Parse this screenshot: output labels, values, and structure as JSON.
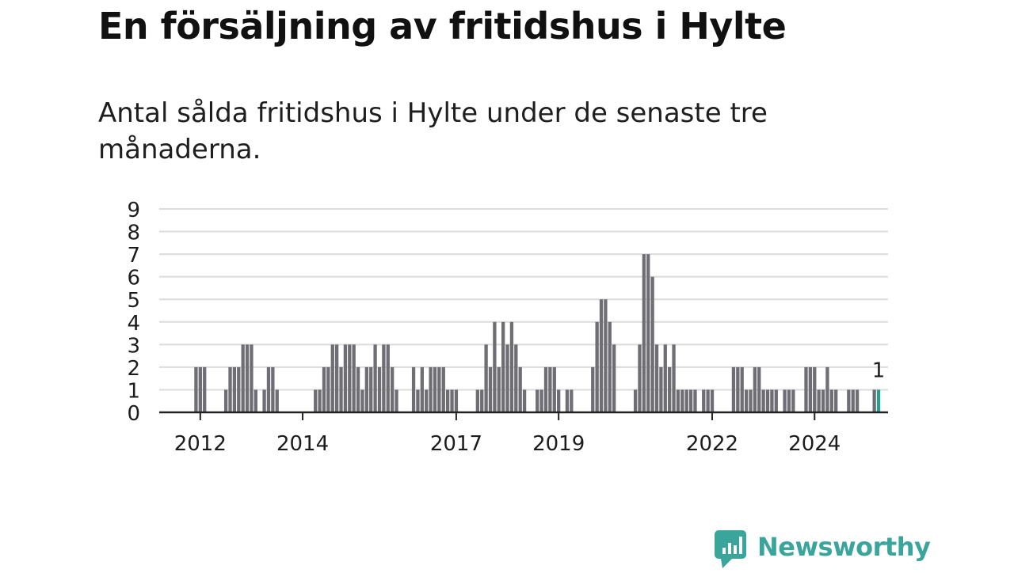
{
  "title": "En försäljning av fritidshus i Hylte",
  "subtitle": "Antal sålda fritidshus i Hylte under de senaste tre månaderna.",
  "brand": {
    "name": "Newsworthy",
    "color": "#3aa59b",
    "icon": "newsworthy-logo-icon"
  },
  "colors": {
    "bar": "#6f6e74",
    "highlight": "#2a9d8f",
    "grid": "#dcdcdc",
    "axis": "#222222",
    "text": "#1c1c1c"
  },
  "chart_data": {
    "type": "bar",
    "title": "En försäljning av fritidshus i Hylte",
    "subtitle": "Antal sålda fritidshus i Hylte under de senaste tre månaderna.",
    "xlabel": "",
    "ylabel": "",
    "ylim": [
      0,
      9
    ],
    "yticks": [
      0,
      1,
      2,
      3,
      4,
      5,
      6,
      7,
      8,
      9
    ],
    "grid": true,
    "legend": "none",
    "x_start": "2011-11",
    "x_interval": "month",
    "xticks": [
      {
        "label": "2012",
        "index": 2
      },
      {
        "label": "2014",
        "index": 26
      },
      {
        "label": "2017",
        "index": 62
      },
      {
        "label": "2019",
        "index": 86
      },
      {
        "label": "2022",
        "index": 122
      },
      {
        "label": "2024",
        "index": 146
      }
    ],
    "values": [
      0,
      2,
      2,
      2,
      0,
      0,
      0,
      0,
      1,
      2,
      2,
      2,
      3,
      3,
      3,
      1,
      0,
      1,
      2,
      2,
      1,
      0,
      0,
      0,
      0,
      0,
      0,
      0,
      0,
      1,
      1,
      2,
      2,
      3,
      3,
      2,
      3,
      3,
      3,
      2,
      1,
      2,
      2,
      3,
      2,
      3,
      3,
      2,
      1,
      0,
      0,
      0,
      2,
      1,
      2,
      1,
      2,
      2,
      2,
      2,
      1,
      1,
      1,
      0,
      0,
      0,
      0,
      1,
      1,
      3,
      2,
      4,
      2,
      4,
      3,
      4,
      3,
      2,
      1,
      0,
      0,
      1,
      1,
      2,
      2,
      2,
      1,
      0,
      1,
      1,
      0,
      0,
      0,
      0,
      2,
      4,
      5,
      5,
      4,
      3,
      0,
      0,
      0,
      0,
      1,
      3,
      7,
      7,
      6,
      3,
      2,
      3,
      2,
      3,
      1,
      1,
      1,
      1,
      1,
      0,
      1,
      1,
      1,
      0,
      0,
      0,
      0,
      2,
      2,
      2,
      1,
      1,
      2,
      2,
      1,
      1,
      1,
      1,
      0,
      1,
      1,
      1,
      0,
      0,
      2,
      2,
      2,
      1,
      1,
      2,
      1,
      1,
      0,
      0,
      1,
      1,
      1,
      0,
      0,
      0,
      1,
      1
    ],
    "highlight_index": 161,
    "annotations": [
      {
        "index": 161,
        "text": "1"
      }
    ]
  }
}
